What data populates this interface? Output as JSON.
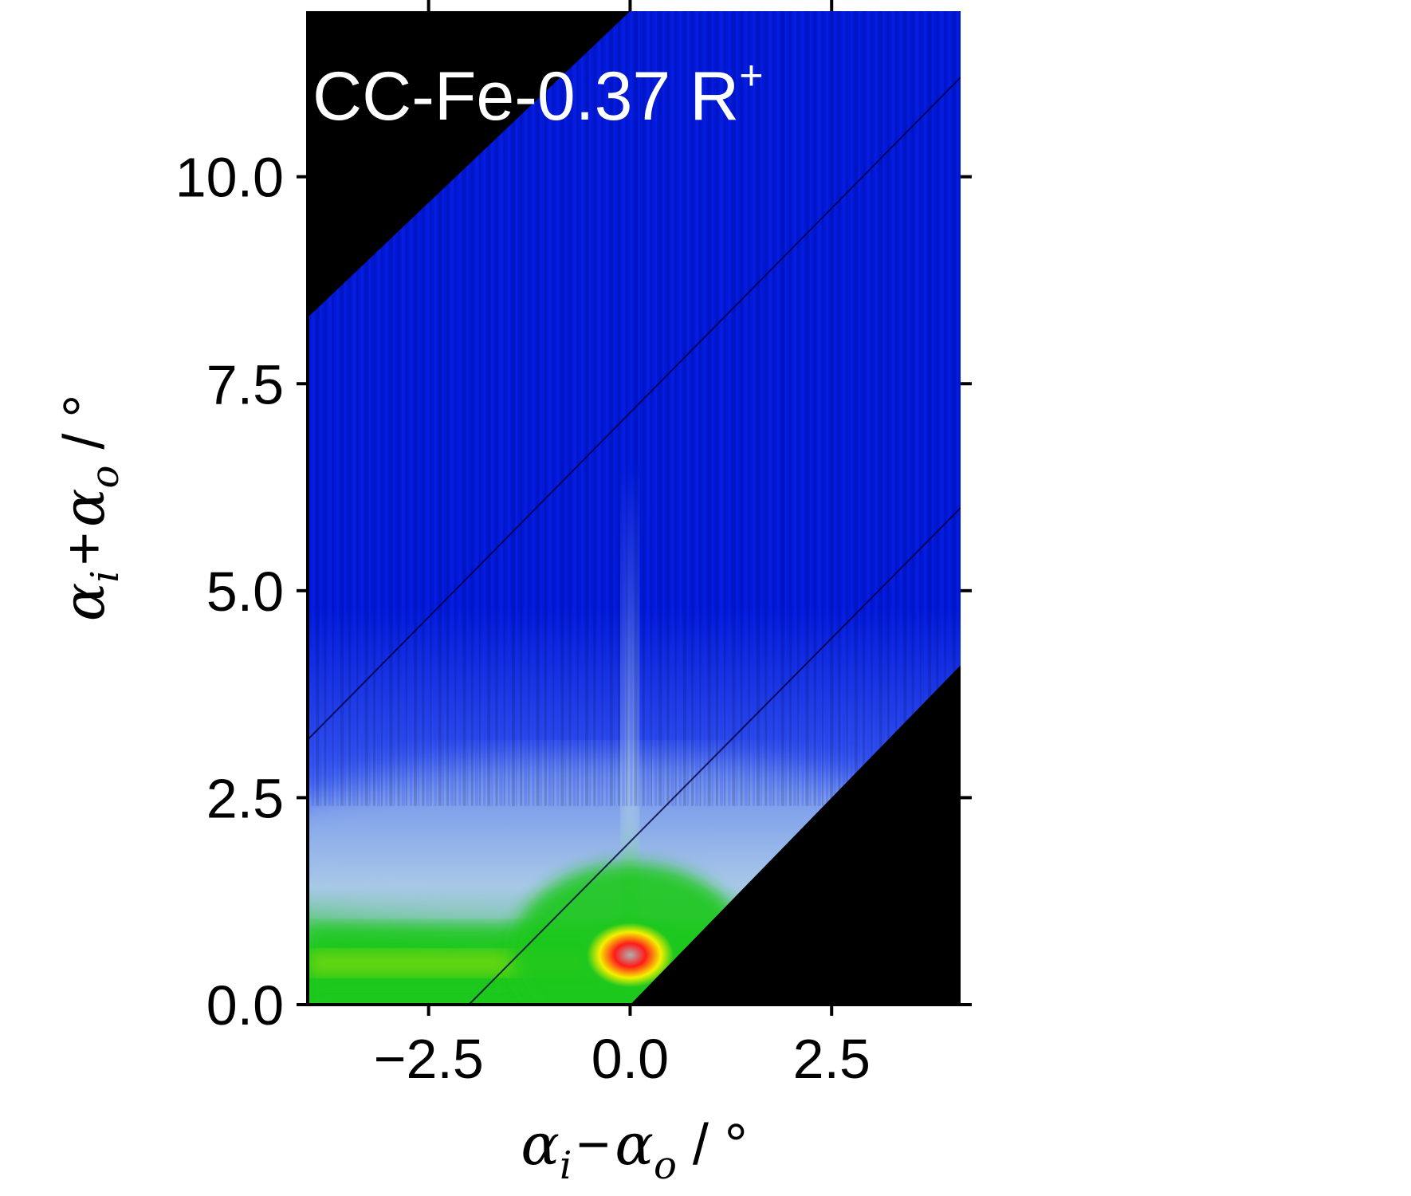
{
  "chart_data": {
    "type": "heatmap",
    "title": "CC-Fe-0.37 R",
    "title_superscript": "+",
    "xlabel": {
      "a": "α",
      "a_sub": "i",
      "op": "−",
      "b": "α",
      "b_sub": "o",
      "unit": " / °"
    },
    "ylabel": {
      "a": "α",
      "a_sub": "i",
      "op": "+",
      "b": "α",
      "b_sub": "o",
      "unit": " / °"
    },
    "xlim": [
      -4.0,
      4.1
    ],
    "ylim": [
      0.0,
      12.0
    ],
    "xticks": [
      -2.5,
      0.0,
      2.5
    ],
    "xtick_labels": [
      "−2.5",
      "0.0",
      "2.5"
    ],
    "yticks": [
      0.0,
      2.5,
      5.0,
      7.5,
      10.0
    ],
    "ytick_labels": [
      "0.0",
      "2.5",
      "5.0",
      "7.5",
      "10.0"
    ],
    "colors": {
      "background": "#000000",
      "low": "#0018d8",
      "mid_low": "#3a5cf0",
      "mid": "#a8c8e8",
      "high": "#1ec81e",
      "higher": "#f5f000",
      "peak": "#ff1a1a",
      "core": "#b0b0b0",
      "title_text": "#ffffff"
    },
    "coverage": {
      "upper_left_edge": [
        [
          -4.0,
          8.3
        ],
        [
          0.0,
          12.0
        ]
      ],
      "lower_right_edge": [
        [
          0.0,
          0.0
        ],
        [
          4.1,
          4.1
        ]
      ]
    },
    "features": {
      "specular_peak": {
        "x": 0.0,
        "y": 0.6
      },
      "specular_rod": {
        "x": 0.0,
        "y_from": 0.0,
        "y_to": 6.5
      },
      "yoneda_band_y": 0.5,
      "diagonal_lines": [
        {
          "from": [
            -4.0,
            3.2
          ],
          "to": [
            4.1,
            11.2
          ]
        },
        {
          "from": [
            -2.0,
            0.0
          ],
          "to": [
            4.1,
            6.0
          ]
        }
      ]
    }
  }
}
